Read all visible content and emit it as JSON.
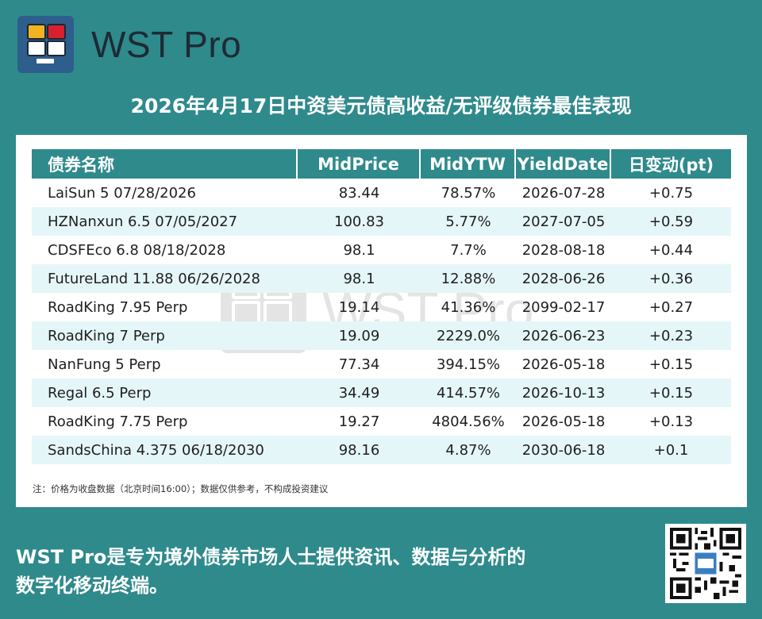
{
  "brand": {
    "name": "WST Pro",
    "logo_icon": "monitor-grid-logo-icon",
    "colors": {
      "logo_bg": "#2e5e8c",
      "yellow": "#f1b320",
      "red": "#d8202e"
    }
  },
  "title": "2026年4月17日中资美元债高收益/无评级债券最佳表现",
  "table": {
    "headers": [
      "债券名称",
      "MidPrice",
      "MidYTW",
      "YieldDate",
      "日变动(pt)"
    ],
    "rows": [
      {
        "name": "LaiSun 5 07/28/2026",
        "price": "83.44",
        "ytw": "78.57%",
        "date": "2026-07-28",
        "change": "+0.75"
      },
      {
        "name": "HZNanxun 6.5 07/05/2027",
        "price": "100.83",
        "ytw": "5.77%",
        "date": "2027-07-05",
        "change": "+0.59"
      },
      {
        "name": "CDSFEco 6.8 08/18/2028",
        "price": "98.1",
        "ytw": "7.7%",
        "date": "2028-08-18",
        "change": "+0.44"
      },
      {
        "name": "FutureLand 11.88 06/26/2028",
        "price": "98.1",
        "ytw": "12.88%",
        "date": "2028-06-26",
        "change": "+0.36"
      },
      {
        "name": "RoadKing 7.95 Perp",
        "price": "19.14",
        "ytw": "41.36%",
        "date": "2099-02-17",
        "change": "+0.27"
      },
      {
        "name": "RoadKing 7 Perp",
        "price": "19.09",
        "ytw": "2229.0%",
        "date": "2026-06-23",
        "change": "+0.23"
      },
      {
        "name": "NanFung 5 Perp",
        "price": "77.34",
        "ytw": "394.15%",
        "date": "2026-05-18",
        "change": "+0.15"
      },
      {
        "name": "Regal 6.5 Perp",
        "price": "34.49",
        "ytw": "414.57%",
        "date": "2026-10-13",
        "change": "+0.15"
      },
      {
        "name": "RoadKing 7.75 Perp",
        "price": "19.27",
        "ytw": "4804.56%",
        "date": "2026-05-18",
        "change": "+0.13"
      },
      {
        "name": "SandsChina 4.375 06/18/2030",
        "price": "98.16",
        "ytw": "4.87%",
        "date": "2030-06-18",
        "change": "+0.1"
      }
    ],
    "colors": {
      "header_bg": "#2f8a8c",
      "alt_row_bg": "#e5f6f8"
    }
  },
  "note": "注：价格为收盘数据（北京时间16:00）；数据仅供参考，不构成投资建议",
  "watermark": "WST Pro",
  "footer": {
    "line1": "WST Pro是专为境外债券市场人士提供资讯、数据与分析的",
    "line2": "数字化移动终端。"
  },
  "qr_icon": "qr-code-icon",
  "page_bg": "#2f8a8c"
}
